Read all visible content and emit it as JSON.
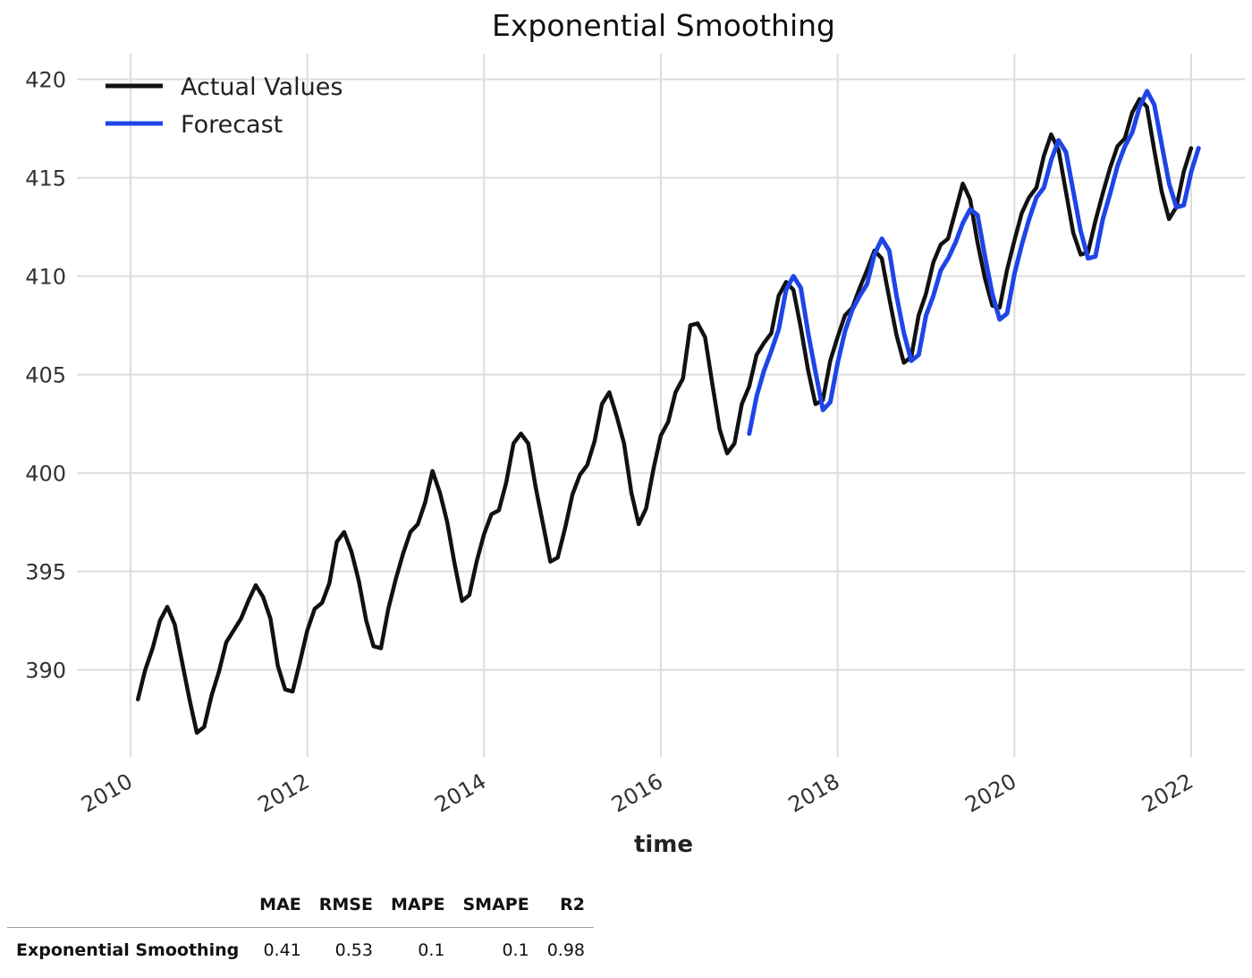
{
  "chart_data": {
    "type": "line",
    "title": "Exponential Smoothing",
    "xlabel": "time",
    "ylabel": "",
    "x_ticks": [
      "2010",
      "2012",
      "2014",
      "2016",
      "2018",
      "2020",
      "2022"
    ],
    "y_ticks": [
      "390",
      "395",
      "400",
      "405",
      "410",
      "415",
      "420"
    ],
    "xlim": [
      2010.0,
      2022.0
    ],
    "ylim": [
      385.3,
      421.3
    ],
    "grid": true,
    "legend_position": "top-left",
    "x_start": 2010.083,
    "x_step": 0.08333,
    "series": [
      {
        "name": "Actual Values",
        "color": "#111111",
        "x_start": 2010.083,
        "values": [
          388.5,
          390.0,
          391.1,
          392.5,
          393.2,
          392.3,
          390.4,
          388.5,
          386.8,
          387.1,
          388.7,
          389.9,
          391.4,
          392.0,
          392.6,
          393.5,
          394.3,
          393.7,
          392.6,
          390.2,
          389.0,
          388.9,
          390.4,
          392.0,
          393.1,
          393.4,
          394.4,
          396.5,
          397.0,
          396.0,
          394.5,
          392.5,
          391.2,
          391.1,
          393.1,
          394.6,
          395.9,
          397.0,
          397.4,
          398.5,
          400.1,
          399.0,
          397.5,
          395.4,
          393.5,
          393.8,
          395.5,
          396.9,
          397.9,
          398.1,
          399.5,
          401.5,
          402.0,
          401.5,
          399.3,
          397.4,
          395.5,
          395.7,
          397.2,
          398.9,
          399.9,
          400.4,
          401.6,
          403.5,
          404.1,
          402.9,
          401.5,
          399.0,
          397.4,
          398.2,
          400.2,
          401.9,
          402.6,
          404.1,
          404.8,
          407.5,
          407.6,
          406.9,
          404.5,
          402.2,
          401.0,
          401.5,
          403.5,
          404.4,
          406.0,
          406.6,
          407.1,
          409.0,
          409.7,
          409.3,
          407.4,
          405.2,
          403.5,
          403.7,
          405.7,
          406.9,
          408.0,
          408.4,
          409.4,
          410.3,
          411.3,
          410.9,
          408.9,
          407.0,
          405.6,
          405.9,
          408.0,
          409.1,
          410.7,
          411.6,
          411.9,
          413.3,
          414.7,
          413.9,
          411.7,
          409.9,
          408.5,
          408.4,
          410.3,
          411.8,
          413.2,
          414.0,
          414.5,
          416.1,
          417.2,
          416.4,
          414.3,
          412.2,
          411.1,
          411.2,
          412.8,
          414.2,
          415.5,
          416.6,
          417.0,
          418.3,
          419.0,
          418.6,
          416.4,
          414.3,
          412.9,
          413.5,
          415.3,
          416.5
        ]
      },
      {
        "name": "Forecast",
        "color": "#1f45e6",
        "x_start": 2017.0,
        "values": [
          402.0,
          403.9,
          405.2,
          406.2,
          407.3,
          409.3,
          410.0,
          409.4,
          407.1,
          405.1,
          403.2,
          403.6,
          405.6,
          407.2,
          408.3,
          409.0,
          409.6,
          411.1,
          411.9,
          411.3,
          409.0,
          407.1,
          405.7,
          406.0,
          408.0,
          409.0,
          410.3,
          410.9,
          411.7,
          412.7,
          413.4,
          413.1,
          411.0,
          409.1,
          407.8,
          408.1,
          410.1,
          411.6,
          412.9,
          414.0,
          414.5,
          415.9,
          416.9,
          416.3,
          414.3,
          412.3,
          410.9,
          411.0,
          412.9,
          414.2,
          415.6,
          416.6,
          417.3,
          418.6,
          419.4,
          418.7,
          416.7,
          414.7,
          413.5,
          413.6,
          415.3,
          416.5
        ]
      }
    ]
  },
  "metrics_table": {
    "columns": [
      "MAE",
      "RMSE",
      "MAPE",
      "SMAPE",
      "R2"
    ],
    "rows": [
      {
        "label": "Exponential Smoothing",
        "values": [
          "0.41",
          "0.53",
          "0.1",
          "0.1",
          "0.98"
        ]
      }
    ]
  }
}
